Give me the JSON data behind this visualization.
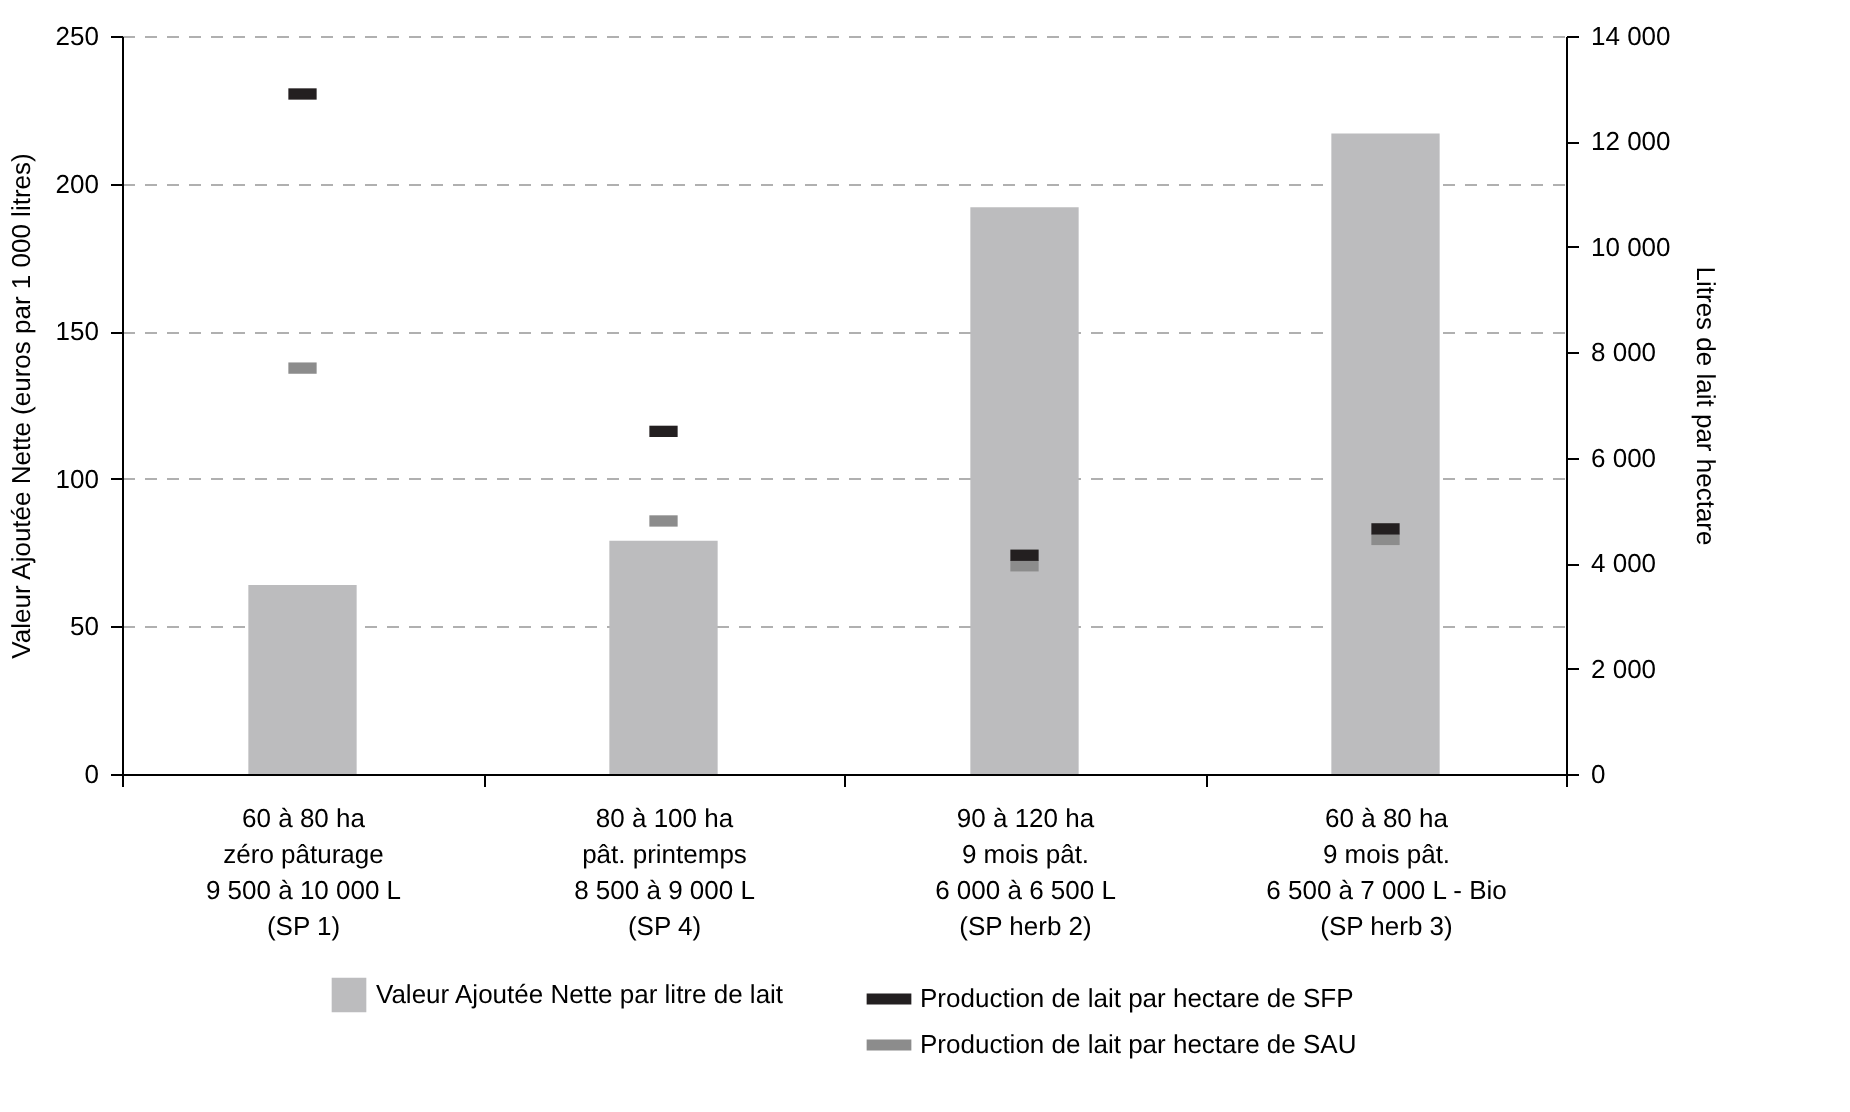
{
  "chart_data": {
    "type": "bar",
    "ylabel": "Valeur Ajoutée Nette (euros par 1 000 litres)",
    "y2label": "Litres de lait par hectare",
    "categories": [
      "60 à 80 ha\nzéro pâturage\n9 500 à 10 000 L\n(SP 1)",
      "80 à 100 ha\npât. printemps\n8 500 à 9 000 L\n(SP 4)",
      "90 à 120 ha\n9 mois pât.\n6 000 à 6 500 L\n(SP herb 2)",
      "60 à 80 ha\n9 mois pât.\n6 500 à 7 000 L - Bio\n(SP herb 3)"
    ],
    "series": [
      {
        "name": "Valeur Ajoutée Nette par litre de lait",
        "color": "#bcbcbe",
        "values": [
          64,
          79,
          192,
          217
        ]
      },
      {
        "name": "Production de lait par hectare de SFP",
        "type": "scatter",
        "axis": "y2",
        "color": "#231f20",
        "values": [
          12900,
          6500,
          4150,
          4650
        ]
      },
      {
        "name": "Production de lait par hectare de SAU",
        "type": "scatter",
        "axis": "y2",
        "color": "#8c8c8c",
        "values": [
          7700,
          4800,
          3950,
          4450
        ]
      }
    ],
    "ylim": [
      0,
      250
    ],
    "yticks": [
      0,
      50,
      100,
      150,
      200,
      250
    ],
    "y2lim": [
      0,
      14000
    ],
    "y2ticks": [
      {
        "value": 0,
        "label": "0"
      },
      {
        "value": 2000,
        "label": "2 000"
      },
      {
        "value": 4000,
        "label": "4 000"
      },
      {
        "value": 6000,
        "label": "6 000"
      },
      {
        "value": 8000,
        "label": "8 000"
      },
      {
        "value": 10000,
        "label": "10 000"
      },
      {
        "value": 12000,
        "label": "12 000"
      },
      {
        "value": 14000,
        "label": "14 000"
      }
    ],
    "grid": "y",
    "legend": "bottom"
  }
}
